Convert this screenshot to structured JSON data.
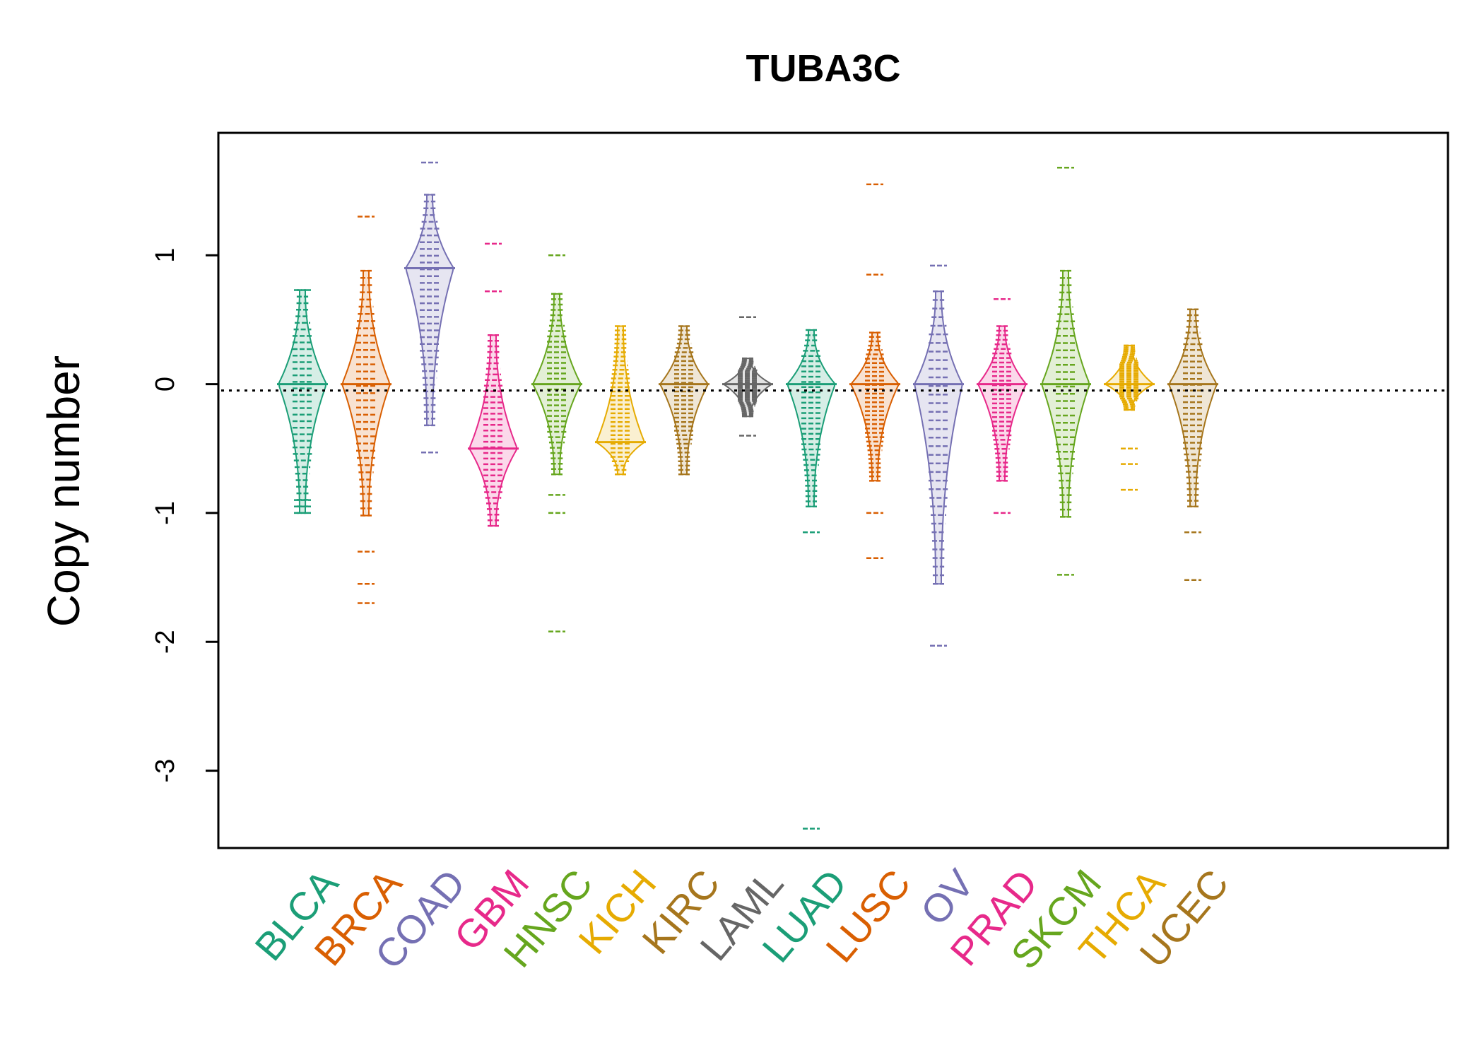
{
  "chart_data": {
    "type": "beanplot",
    "title": "TUBA3C",
    "ylabel": "Copy number",
    "xlabel": "",
    "ylim": [
      -3.6,
      1.95
    ],
    "yticks": [
      -3,
      -2,
      -1,
      0,
      1
    ],
    "ytick_labels": [
      "-3",
      "-2",
      "-1",
      "0",
      "1"
    ],
    "reference_line": -0.05,
    "categories": [
      "BLCA",
      "BRCA",
      "COAD",
      "GBM",
      "HNSC",
      "KICH",
      "KIRC",
      "LAML",
      "LUAD",
      "LUSC",
      "OV",
      "PRAD",
      "SKCM",
      "THCA",
      "UCEC"
    ],
    "colors": [
      "#1B9E77",
      "#D95F02",
      "#7570B3",
      "#E7298A",
      "#66A61E",
      "#E6AB02",
      "#A6761D",
      "#666666",
      "#1B9E77",
      "#D95F02",
      "#7570B3",
      "#E7298A",
      "#66A61E",
      "#E6AB02",
      "#A6761D"
    ],
    "series": [
      {
        "name": "BLCA",
        "min": -1.0,
        "max": 0.73,
        "mode": 0.0,
        "outliers": [
          -0.9,
          -0.95,
          -1.0,
          0.73
        ]
      },
      {
        "name": "BRCA",
        "min": -1.02,
        "max": 0.88,
        "mode": 0.0,
        "outliers": [
          -1.3,
          -1.55,
          -1.7,
          1.3
        ]
      },
      {
        "name": "COAD",
        "min": -0.32,
        "max": 1.47,
        "mode": 0.9,
        "outliers": [
          -0.53,
          1.72
        ]
      },
      {
        "name": "GBM",
        "min": -1.1,
        "max": 0.38,
        "mode": -0.5,
        "outliers": [
          0.72,
          1.09
        ]
      },
      {
        "name": "HNSC",
        "min": -0.7,
        "max": 0.7,
        "mode": 0.0,
        "outliers": [
          -0.86,
          -1.0,
          -1.92,
          1.0
        ]
      },
      {
        "name": "KICH",
        "min": -0.7,
        "max": 0.45,
        "mode": -0.45,
        "outliers": []
      },
      {
        "name": "KIRC",
        "min": -0.7,
        "max": 0.45,
        "mode": 0.0,
        "outliers": []
      },
      {
        "name": "LAML",
        "min": -0.25,
        "max": 0.2,
        "mode": 0.0,
        "outliers": [
          0.52,
          -0.4
        ]
      },
      {
        "name": "LUAD",
        "min": -0.95,
        "max": 0.42,
        "mode": 0.0,
        "outliers": [
          -1.15,
          -3.45
        ]
      },
      {
        "name": "LUSC",
        "min": -0.75,
        "max": 0.4,
        "mode": 0.0,
        "outliers": [
          -1.0,
          -1.35,
          0.85,
          1.55
        ]
      },
      {
        "name": "OV",
        "min": -1.55,
        "max": 0.72,
        "mode": 0.0,
        "outliers": [
          -2.03,
          0.92
        ]
      },
      {
        "name": "PRAD",
        "min": -0.75,
        "max": 0.45,
        "mode": 0.0,
        "outliers": [
          -1.0,
          0.66
        ]
      },
      {
        "name": "SKCM",
        "min": -1.03,
        "max": 0.88,
        "mode": 0.0,
        "outliers": [
          -1.48,
          1.68
        ]
      },
      {
        "name": "THCA",
        "min": -0.2,
        "max": 0.3,
        "mode": 0.0,
        "outliers": [
          -0.5,
          -0.62,
          -0.82
        ]
      },
      {
        "name": "UCEC",
        "min": -0.95,
        "max": 0.58,
        "mode": 0.0,
        "outliers": [
          -1.15,
          -1.52
        ]
      }
    ]
  }
}
